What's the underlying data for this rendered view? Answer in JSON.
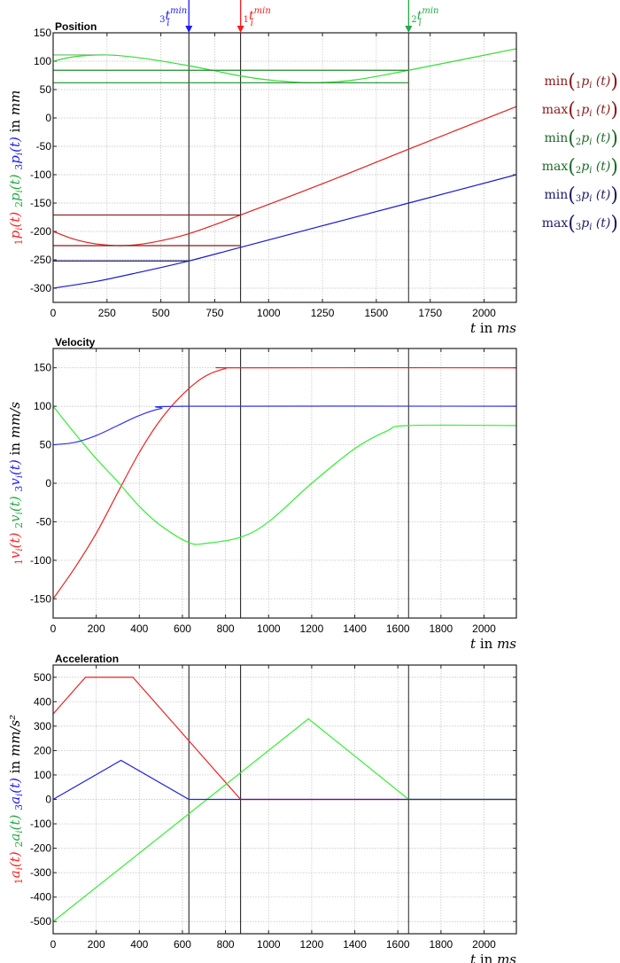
{
  "figure": {
    "x_axis_label_t": "t",
    "x_axis_label_in": "in",
    "x_axis_label_unit": "ms",
    "markers": [
      {
        "name": "t3_min",
        "pre": "3",
        "sym": "t",
        "sub": "i",
        "sup": "min",
        "t": 630,
        "color": "#1a1aff"
      },
      {
        "name": "t1_min",
        "pre": "1",
        "sym": "t",
        "sub": "i",
        "sup": "min",
        "t": 870,
        "color": "#ff1a1a"
      },
      {
        "name": "t2_min",
        "pre": "2",
        "sym": "t",
        "sub": "i",
        "sup": "min",
        "t": 1650,
        "color": "#22aa44"
      }
    ],
    "legend": [
      {
        "fn": "min",
        "pre": "1",
        "sym": "p",
        "sub": "i",
        "arg": "(t)",
        "color": "#8b1a1a"
      },
      {
        "fn": "max",
        "pre": "1",
        "sym": "p",
        "sub": "i",
        "arg": "(t)",
        "color": "#8b1a1a"
      },
      {
        "fn": "min",
        "pre": "2",
        "sym": "p",
        "sub": "i",
        "arg": "(t)",
        "color": "#1e6b2a"
      },
      {
        "fn": "max",
        "pre": "2",
        "sym": "p",
        "sub": "i",
        "arg": "(t)",
        "color": "#1e6b2a"
      },
      {
        "fn": "min",
        "pre": "3",
        "sym": "p",
        "sub": "i",
        "arg": "(t)",
        "color": "#1a1a6b"
      },
      {
        "fn": "max",
        "pre": "3",
        "sym": "p",
        "sub": "i",
        "arg": "(t)",
        "color": "#1a1a6b"
      }
    ]
  },
  "chart_data": [
    {
      "type": "line",
      "title": "Position",
      "xlabel": "t in ms",
      "ylabel": "1p_i(t)  2p_i(t)  3p_i(t)  in mm",
      "ylabel_parts": [
        {
          "text": "1p",
          "color": "#ff2020"
        },
        {
          "text": "2p",
          "color": "#22aa44"
        },
        {
          "text": "3p",
          "color": "#1a1aff"
        }
      ],
      "ylabel_sym": "p",
      "ylabel_unit": "mm",
      "xlim": [
        0,
        2150
      ],
      "ylim": [
        -325,
        150
      ],
      "xticks": [
        0,
        250,
        500,
        750,
        1000,
        1250,
        1500,
        1750,
        2000
      ],
      "yticks": [
        150,
        100,
        50,
        0,
        -50,
        -100,
        -150,
        -200,
        -250,
        -300
      ],
      "grid": true,
      "vlines": [
        630,
        870,
        1650
      ],
      "series": [
        {
          "name": "1p_i(t)",
          "color": "#e02020",
          "x": [
            0,
            100,
            200,
            320,
            450,
            630,
            870,
            1250,
            1650,
            2150
          ],
          "y": [
            -200,
            -214,
            -222,
            -225,
            -220,
            -204,
            -171,
            -116,
            -55,
            20
          ]
        },
        {
          "name": "2p_i(t)",
          "color": "#33dd33",
          "x": [
            0,
            100,
            250,
            400,
            630,
            870,
            1000,
            1200,
            1400,
            1650,
            2150
          ],
          "y": [
            100,
            108,
            111,
            106,
            92,
            74,
            67,
            62,
            67,
            84,
            122
          ]
        },
        {
          "name": "3p_i(t)",
          "color": "#1a1acc",
          "x": [
            0,
            200,
            400,
            630,
            870,
            1250,
            1650,
            2150
          ],
          "y": [
            -300,
            -288,
            -272,
            -252,
            -228,
            -190,
            -150,
            -100
          ]
        },
        {
          "name": "min(1p_i(t))",
          "color": "#8b1a1a",
          "x": [
            0,
            870
          ],
          "y": [
            -225,
            -225
          ]
        },
        {
          "name": "max(1p_i(t))",
          "color": "#8b1a1a",
          "x": [
            0,
            870
          ],
          "y": [
            -171,
            -171
          ]
        },
        {
          "name": "min(2p_i(t))",
          "color": "#1e8b2a",
          "x": [
            0,
            1650
          ],
          "y": [
            62,
            62
          ]
        },
        {
          "name": "max(2p_i(t))",
          "color": "#1e8b2a",
          "x": [
            0,
            1650
          ],
          "y": [
            84,
            84
          ]
        },
        {
          "name": "max(2p_i(t)) early",
          "color": "#66bb66",
          "x": [
            0,
            250
          ],
          "y": [
            111,
            111
          ]
        },
        {
          "name": "min(3p_i(t))",
          "color": "#1a1a6b",
          "x": [
            0,
            630
          ],
          "y": [
            -252,
            -252
          ]
        }
      ]
    },
    {
      "type": "line",
      "title": "Velocity",
      "xlabel": "t in ms",
      "ylabel": "1v_i(t)  2v_i(t)  3v_i(t)  in mm/s",
      "ylabel_parts": [
        {
          "text": "1v",
          "color": "#ff2020"
        },
        {
          "text": "2v",
          "color": "#22aa44"
        },
        {
          "text": "3v",
          "color": "#1a1aff"
        }
      ],
      "ylabel_sym": "v",
      "ylabel_unit": "mm/s",
      "xlim": [
        0,
        2150
      ],
      "ylim": [
        -175,
        175
      ],
      "xticks": [
        0,
        200,
        400,
        600,
        800,
        1000,
        1200,
        1400,
        1600,
        1800,
        2000
      ],
      "yticks": [
        150,
        100,
        50,
        0,
        -50,
        -100,
        -150
      ],
      "grid": true,
      "vlines": [
        630,
        870,
        1650
      ],
      "series": [
        {
          "name": "1v_i(t)",
          "color": "#ee2222",
          "x": [
            0,
            100,
            200,
            300,
            400,
            500,
            600,
            700,
            800,
            870,
            2150
          ],
          "y": [
            -150,
            -110,
            -65,
            -12,
            40,
            83,
            115,
            138,
            149,
            150,
            150
          ]
        },
        {
          "name": "2v_i(t)",
          "color": "#33ee33",
          "x": [
            0,
            100,
            200,
            300,
            400,
            500,
            630,
            710,
            870,
            1000,
            1200,
            1400,
            1550,
            1650,
            2150
          ],
          "y": [
            100,
            65,
            32,
            2,
            -30,
            -55,
            -77,
            -78,
            -70,
            -50,
            0,
            45,
            68,
            75,
            75
          ]
        },
        {
          "name": "3v_i(t)",
          "color": "#3333ee",
          "x": [
            0,
            100,
            200,
            300,
            400,
            500,
            630,
            2150
          ],
          "y": [
            50,
            53,
            62,
            75,
            88,
            97,
            100,
            100
          ]
        }
      ]
    },
    {
      "type": "line",
      "title": "Acceleration",
      "xlabel": "t in ms",
      "ylabel": "1a_i(t)  2a_i(t)  3a_i(t)  in mm/s^2",
      "ylabel_parts": [
        {
          "text": "1a",
          "color": "#ff2020"
        },
        {
          "text": "2a",
          "color": "#22aa44"
        },
        {
          "text": "3a",
          "color": "#1a1aff"
        }
      ],
      "ylabel_sym": "a",
      "ylabel_unit": "mm/s²",
      "xlim": [
        0,
        2150
      ],
      "ylim": [
        -550,
        550
      ],
      "xticks": [
        0,
        200,
        400,
        600,
        800,
        1000,
        1200,
        1400,
        1600,
        1800,
        2000
      ],
      "yticks": [
        500,
        400,
        300,
        200,
        100,
        0,
        -100,
        -200,
        -300,
        -400,
        -500
      ],
      "grid": true,
      "vlines": [
        630,
        870,
        1650
      ],
      "series": [
        {
          "name": "1a_i(t)",
          "color": "#ee2222",
          "x": [
            0,
            150,
            370,
            630,
            870,
            2150
          ],
          "y": [
            350,
            500,
            500,
            240,
            0,
            0
          ]
        },
        {
          "name": "2a_i(t)",
          "color": "#33ee33",
          "x": [
            0,
            1185,
            1650,
            2150
          ],
          "y": [
            -500,
            330,
            0,
            0
          ]
        },
        {
          "name": "3a_i(t)",
          "color": "#2222dd",
          "x": [
            0,
            315,
            630,
            2150
          ],
          "y": [
            0,
            160,
            0,
            0
          ]
        }
      ]
    }
  ]
}
